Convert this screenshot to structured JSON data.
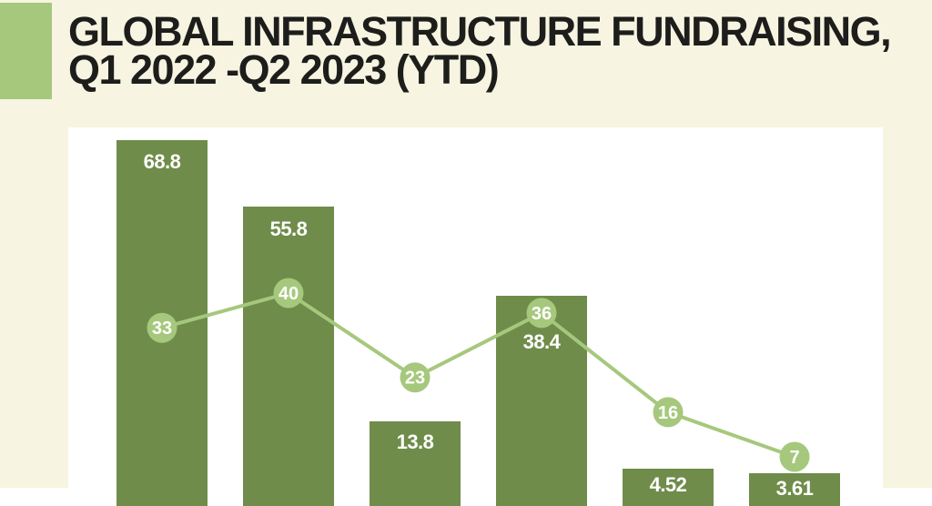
{
  "page": {
    "background_color": "#f7f4e1",
    "accent_green": "#a6c87d",
    "bar_green": "#6f8c4a",
    "title_color": "#1d1d1b",
    "plot_background": "#ffffff"
  },
  "header": {
    "title_line1": "GLOBAL INFRASTRUCTURE FUNDRAISING,",
    "title_line2": "Q1 2022 -Q2 2023 (YTD)"
  },
  "chart_data": {
    "type": "bar",
    "combo": "bar-with-line-overlay",
    "title": "GLOBAL INFRASTRUCTURE FUNDRAISING, Q1 2022 -Q2 2023 (YTD)",
    "xlabel": "",
    "ylabel": "",
    "grid": false,
    "legend": false,
    "axis_tick_labels_visible": false,
    "bar_axis_range": [
      0,
      71
    ],
    "line_axis_range": [
      0,
      73
    ],
    "series": [
      {
        "name": "bar-series",
        "type": "bar",
        "color": "#6f8c4a",
        "label_color": "#ffffff",
        "values": [
          68.8,
          55.8,
          13.8,
          38.4,
          4.52,
          3.61
        ],
        "labels": [
          "68.8",
          "55.8",
          "13.8",
          "38.4",
          "4.52",
          "3.61"
        ]
      },
      {
        "name": "line-series",
        "type": "line",
        "color": "#a6c87d",
        "marker_text_color": "#ffffff",
        "values": [
          33,
          40,
          23,
          36,
          16,
          7
        ],
        "labels": [
          "33",
          "40",
          "23",
          "36",
          "16",
          "7"
        ]
      }
    ]
  }
}
